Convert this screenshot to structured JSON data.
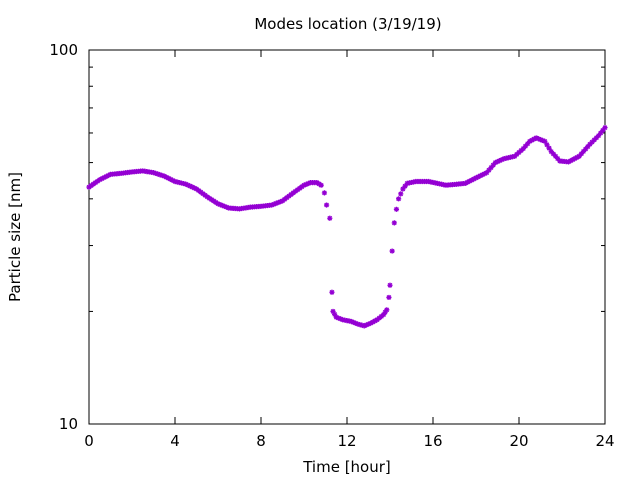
{
  "chart_data": {
    "type": "scatter",
    "title": "Modes location (3/19/19)",
    "xlabel": "Time [hour]",
    "ylabel": "Particle size [nm]",
    "xlim": [
      0,
      24
    ],
    "ylim": [
      10,
      100
    ],
    "yscale": "log",
    "grid": false,
    "legend": "none",
    "x_ticks": [
      0,
      4,
      8,
      12,
      16,
      20,
      24
    ],
    "y_ticks": [
      10,
      100
    ],
    "marker": "asterisk",
    "color": "#9400D3",
    "series": [
      {
        "name": "",
        "points": [
          [
            0,
            43
          ],
          [
            0.5,
            45
          ],
          [
            1,
            46.5
          ],
          [
            1.5,
            46.8
          ],
          [
            2,
            47.2
          ],
          [
            2.5,
            47.5
          ],
          [
            3,
            47
          ],
          [
            3.5,
            46
          ],
          [
            4,
            44.5
          ],
          [
            4.5,
            43.8
          ],
          [
            5,
            42.5
          ],
          [
            5.5,
            40.5
          ],
          [
            6,
            38.8
          ],
          [
            6.5,
            37.8
          ],
          [
            7,
            37.6
          ],
          [
            7.5,
            38
          ],
          [
            8,
            38.2
          ],
          [
            8.5,
            38.5
          ],
          [
            9,
            39.5
          ],
          [
            9.5,
            41.5
          ],
          [
            10,
            43.5
          ],
          [
            10.3,
            44.2
          ],
          [
            10.6,
            44.2
          ],
          [
            10.8,
            43.5
          ],
          [
            10.95,
            41.5
          ],
          [
            11.05,
            38.5
          ],
          [
            11.2,
            35.5
          ],
          [
            11.3,
            22.5
          ],
          [
            11.35,
            20
          ],
          [
            11.5,
            19.3
          ],
          [
            11.8,
            19
          ],
          [
            12.2,
            18.8
          ],
          [
            12.5,
            18.5
          ],
          [
            12.8,
            18.3
          ],
          [
            13.1,
            18.6
          ],
          [
            13.4,
            19
          ],
          [
            13.7,
            19.6
          ],
          [
            13.85,
            20.2
          ],
          [
            13.95,
            21.8
          ],
          [
            14.0,
            23.5
          ],
          [
            14.1,
            29
          ],
          [
            14.2,
            34.5
          ],
          [
            14.3,
            37.5
          ],
          [
            14.4,
            40
          ],
          [
            14.6,
            42.5
          ],
          [
            14.8,
            44
          ],
          [
            15.2,
            44.5
          ],
          [
            15.8,
            44.5
          ],
          [
            16.2,
            44
          ],
          [
            16.6,
            43.5
          ],
          [
            17,
            43.7
          ],
          [
            17.5,
            44
          ],
          [
            18,
            45.5
          ],
          [
            18.5,
            47
          ],
          [
            18.9,
            50
          ],
          [
            19.3,
            51.2
          ],
          [
            19.8,
            52
          ],
          [
            20.2,
            54.5
          ],
          [
            20.5,
            57
          ],
          [
            20.8,
            58.2
          ],
          [
            21.2,
            57
          ],
          [
            21.5,
            53.5
          ],
          [
            21.9,
            50.5
          ],
          [
            22.3,
            50.2
          ],
          [
            22.8,
            52
          ],
          [
            23.3,
            56
          ],
          [
            23.7,
            59
          ],
          [
            24,
            62
          ]
        ]
      }
    ]
  }
}
